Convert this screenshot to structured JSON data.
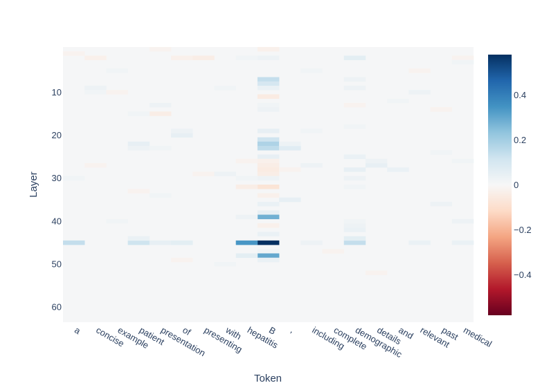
{
  "chart_data": {
    "type": "heatmap",
    "xlabel": "Token",
    "ylabel": "Layer",
    "x_tokens": [
      "a",
      "concise",
      "example",
      "patient",
      "presentation",
      "of",
      "presenting",
      "with",
      "hepatitis",
      "B",
      ",",
      "including",
      "complete",
      "demographic",
      "details",
      "and",
      "relevant",
      "past",
      "medical"
    ],
    "y_range": [
      0,
      63
    ],
    "y_ticks": [
      10,
      20,
      30,
      40,
      50,
      60
    ],
    "y_reversed": true,
    "colorscale": "RdBu",
    "zmin": -0.58,
    "zmax": 0.58,
    "colorbar_ticks": [
      0.4,
      0.2,
      0,
      -0.2,
      -0.4
    ],
    "colorbar_tick_labels": [
      "0.4",
      "0.2",
      "0",
      "−0.2",
      "−0.4"
    ],
    "background_value": 0.005,
    "cells": [
      {
        "token": "B",
        "layer": 0,
        "value": -0.03
      },
      {
        "token": "B",
        "layer": 2,
        "value": 0.03
      },
      {
        "token": "hepatitis",
        "layer": 2,
        "value": 0.02
      },
      {
        "token": "demographic",
        "layer": 2,
        "value": 0.06
      },
      {
        "token": "of",
        "layer": 2,
        "value": -0.03
      },
      {
        "token": "B",
        "layer": 7,
        "value": 0.14
      },
      {
        "token": "B",
        "layer": 8,
        "value": 0.1
      },
      {
        "token": "B",
        "layer": 9,
        "value": 0.04
      },
      {
        "token": "B",
        "layer": 11,
        "value": -0.05
      },
      {
        "token": "B",
        "layer": 13,
        "value": 0.02
      },
      {
        "token": "B",
        "layer": 14,
        "value": 0.03
      },
      {
        "token": "B",
        "layer": 19,
        "value": 0.05
      },
      {
        "token": "B",
        "layer": 21,
        "value": 0.12
      },
      {
        "token": "B",
        "layer": 22,
        "value": 0.18
      },
      {
        "token": "B",
        "layer": 23,
        "value": 0.15
      },
      {
        "token": "B",
        "layer": 25,
        "value": 0.05
      },
      {
        "token": "B",
        "layer": 26,
        "value": -0.03
      },
      {
        "token": "B",
        "layer": 27,
        "value": -0.04
      },
      {
        "token": "B",
        "layer": 28,
        "value": -0.05
      },
      {
        "token": "B",
        "layer": 29,
        "value": -0.04
      },
      {
        "token": "B",
        "layer": 30,
        "value": 0.03
      },
      {
        "token": "B",
        "layer": 32,
        "value": -0.08
      },
      {
        "token": "B",
        "layer": 34,
        "value": -0.03
      },
      {
        "token": "B",
        "layer": 36,
        "value": 0.04
      },
      {
        "token": "B",
        "layer": 38,
        "value": 0.05
      },
      {
        "token": "B",
        "layer": 39,
        "value": 0.28
      },
      {
        "token": "B",
        "layer": 41,
        "value": -0.03
      },
      {
        "token": "B",
        "layer": 43,
        "value": 0.04
      },
      {
        "token": "B",
        "layer": 45,
        "value": 0.58
      },
      {
        "token": "B",
        "layer": 47,
        "value": 0.02
      },
      {
        "token": "B",
        "layer": 48,
        "value": 0.3
      },
      {
        "token": "B",
        "layer": 49,
        "value": 0.04
      },
      {
        "token": "hepatitis",
        "layer": 45,
        "value": 0.34
      },
      {
        "token": "hepatitis",
        "layer": 48,
        "value": 0.06
      },
      {
        "token": "hepatitis",
        "layer": 32,
        "value": -0.04
      },
      {
        "token": "hepatitis",
        "layer": 30,
        "value": 0.02
      },
      {
        "token": "hepatitis",
        "layer": 39,
        "value": 0.03
      },
      {
        "token": "a",
        "layer": 45,
        "value": 0.14
      },
      {
        "token": "patient",
        "layer": 45,
        "value": 0.12
      },
      {
        "token": "patient",
        "layer": 44,
        "value": 0.04
      },
      {
        "token": "presentation",
        "layer": 45,
        "value": 0.05
      },
      {
        "token": "of",
        "layer": 45,
        "value": 0.06
      },
      {
        "token": "demographic",
        "layer": 45,
        "value": 0.14
      },
      {
        "token": "demographic",
        "layer": 44,
        "value": 0.06
      },
      {
        "token": "demographic",
        "layer": 42,
        "value": 0.04
      },
      {
        "token": "demographic",
        "layer": 41,
        "value": 0.03
      },
      {
        "token": "demographic",
        "layer": 40,
        "value": 0.02
      },
      {
        "token": "demographic",
        "layer": 25,
        "value": 0.04
      },
      {
        "token": "demographic",
        "layer": 28,
        "value": 0.05
      },
      {
        "token": "demographic",
        "layer": 30,
        "value": 0.03
      },
      {
        "token": "demographic",
        "layer": 32,
        "value": 0.02
      },
      {
        "token": "demographic",
        "layer": 13,
        "value": -0.02
      },
      {
        "token": "demographic",
        "layer": 9,
        "value": 0.03
      },
      {
        "token": "demographic",
        "layer": 7,
        "value": 0.03
      },
      {
        "token": "demographic",
        "layer": 18,
        "value": 0.02
      },
      {
        "token": "relevant",
        "layer": 45,
        "value": 0.04
      },
      {
        "token": "relevant",
        "layer": 10,
        "value": 0.03
      },
      {
        "token": "including",
        "layer": 45,
        "value": 0.03
      },
      {
        "token": "including",
        "layer": 27,
        "value": 0.03
      },
      {
        "token": "medical",
        "layer": 45,
        "value": 0.04
      },
      {
        "token": "medical",
        "layer": 2,
        "value": -0.02
      },
      {
        "token": "medical",
        "layer": 3,
        "value": 0.02
      },
      {
        "token": "medical",
        "layer": 26,
        "value": 0.02
      },
      {
        "token": ",",
        "layer": 23,
        "value": 0.07
      },
      {
        "token": ",",
        "layer": 22,
        "value": 0.03
      },
      {
        "token": ",",
        "layer": 35,
        "value": 0.05
      },
      {
        "token": ",",
        "layer": 28,
        "value": -0.02
      },
      {
        "token": "including",
        "layer": 19,
        "value": 0.02
      },
      {
        "token": "details",
        "layer": 27,
        "value": 0.05
      },
      {
        "token": "details",
        "layer": 26,
        "value": 0.03
      },
      {
        "token": "and",
        "layer": 28,
        "value": 0.04
      },
      {
        "token": "presenting",
        "layer": 2,
        "value": -0.04
      },
      {
        "token": "presentation",
        "layer": 0,
        "value": -0.02
      },
      {
        "token": "a",
        "layer": 1,
        "value": -0.02
      },
      {
        "token": "concise",
        "layer": 2,
        "value": -0.03
      },
      {
        "token": "presentation",
        "layer": 15,
        "value": -0.04
      },
      {
        "token": "patient",
        "layer": 15,
        "value": 0.02
      },
      {
        "token": "of",
        "layer": 20,
        "value": 0.05
      },
      {
        "token": "of",
        "layer": 19,
        "value": 0.03
      },
      {
        "token": "patient",
        "layer": 22,
        "value": 0.05
      },
      {
        "token": "patient",
        "layer": 23,
        "value": 0.03
      },
      {
        "token": "presentation",
        "layer": 23,
        "value": 0.02
      },
      {
        "token": "presentation",
        "layer": 13,
        "value": 0.03
      },
      {
        "token": "presenting",
        "layer": 29,
        "value": -0.02
      },
      {
        "token": "with",
        "layer": 29,
        "value": 0.03
      },
      {
        "token": "with",
        "layer": 9,
        "value": 0.02
      },
      {
        "token": "hepatitis",
        "layer": 26,
        "value": -0.02
      },
      {
        "token": "example",
        "layer": 5,
        "value": 0.02
      },
      {
        "token": "concise",
        "layer": 9,
        "value": 0.03
      },
      {
        "token": "concise",
        "layer": 10,
        "value": 0.02
      },
      {
        "token": "example",
        "layer": 10,
        "value": -0.02
      },
      {
        "token": "concise",
        "layer": 27,
        "value": -0.02
      },
      {
        "token": "a",
        "layer": 30,
        "value": 0.02
      },
      {
        "token": "example",
        "layer": 40,
        "value": 0.02
      },
      {
        "token": "patient",
        "layer": 33,
        "value": -0.02
      },
      {
        "token": "presentation",
        "layer": 34,
        "value": 0.02
      },
      {
        "token": "of",
        "layer": 49,
        "value": -0.02
      },
      {
        "token": "with",
        "layer": 50,
        "value": 0.02
      },
      {
        "token": "complete",
        "layer": 47,
        "value": -0.02
      },
      {
        "token": "details",
        "layer": 52,
        "value": -0.02
      },
      {
        "token": "past",
        "layer": 36,
        "value": 0.03
      },
      {
        "token": "past",
        "layer": 24,
        "value": 0.02
      },
      {
        "token": "medical",
        "layer": 40,
        "value": 0.03
      },
      {
        "token": "relevant",
        "layer": 5,
        "value": -0.02
      },
      {
        "token": "past",
        "layer": 14,
        "value": -0.02
      },
      {
        "token": "including",
        "layer": 5,
        "value": 0.02
      },
      {
        "token": "and",
        "layer": 12,
        "value": 0.02
      }
    ]
  }
}
